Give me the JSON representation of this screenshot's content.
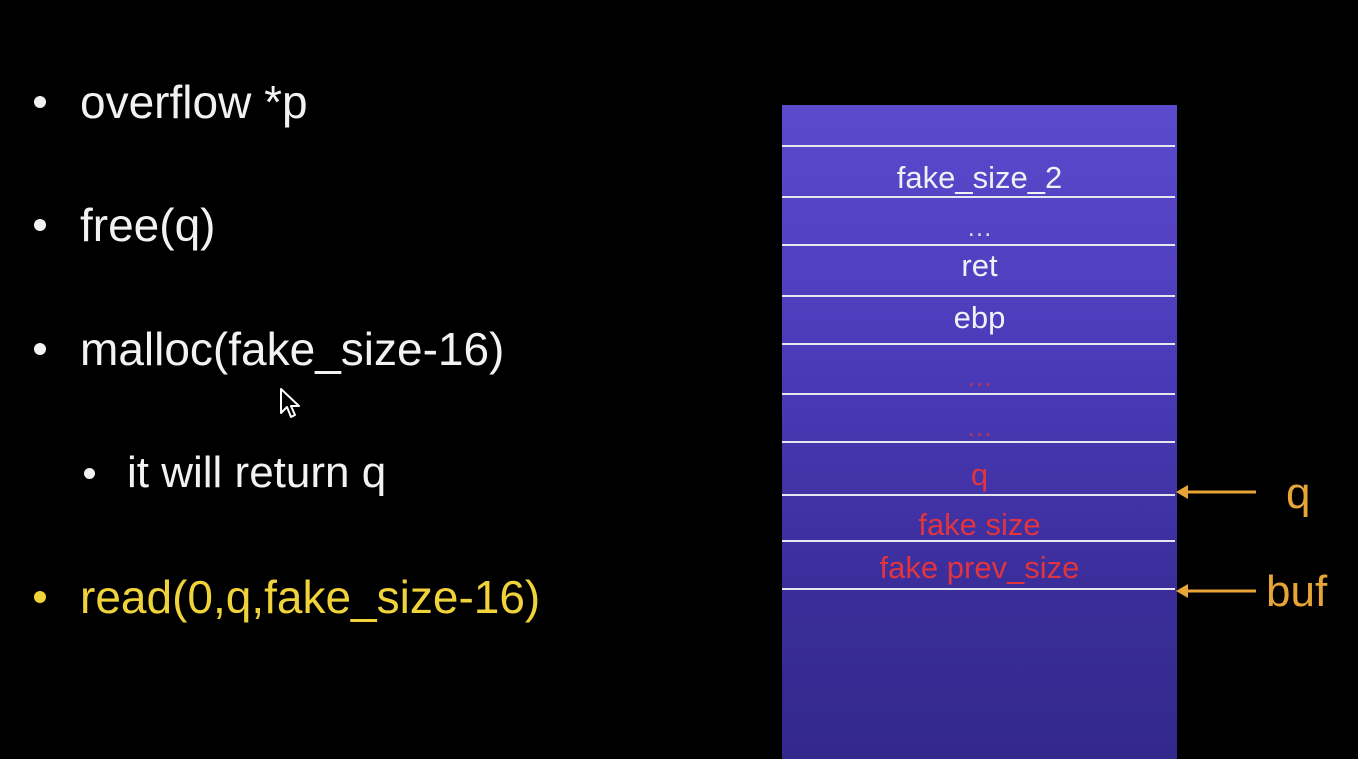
{
  "bullets": {
    "b1": "overflow *p",
    "b2": "free(q)",
    "b3": "malloc(fake_size-16)",
    "b3_sub": "it will return q",
    "b4": "read(0,q,fake_size-16)"
  },
  "stack": {
    "cells": {
      "fake_size_2": "fake_size_2",
      "ellipsis_1": "…",
      "ret": "ret",
      "ebp": "ebp",
      "ellipsis_2": "…",
      "ellipsis_3": "…",
      "q": "q",
      "fake_size": "fake size",
      "fake_prev_size": "fake prev_size"
    },
    "pointers": {
      "q": "q",
      "buf": "buf"
    }
  },
  "colors": {
    "background": "#000000",
    "bullet_text": "#f2f2f2",
    "highlight": "#f0d33a",
    "stack_top": "#5c4acd",
    "stack_bottom": "#33288c",
    "red_label": "#e0343f",
    "pointer": "#e8a537"
  }
}
